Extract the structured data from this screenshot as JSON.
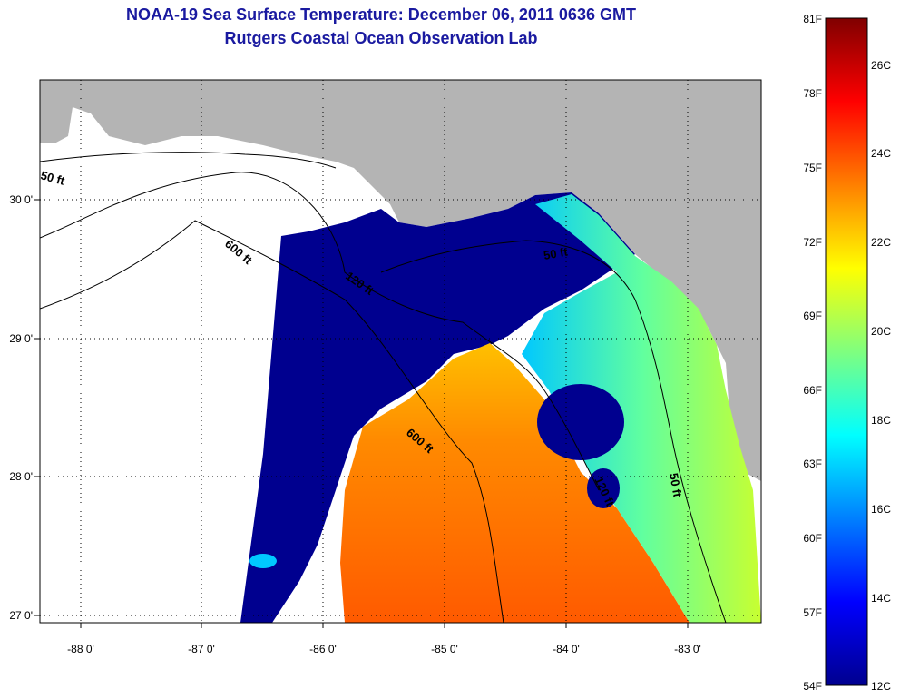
{
  "header": {
    "title": "NOAA-19 Sea Surface Temperature:  December 06, 2011 0636 GMT",
    "subtitle": "Rutgers Coastal Ocean Observation Lab"
  },
  "map": {
    "lon_ticks": [
      "-88 0'",
      "-87 0'",
      "-86 0'",
      "-85 0'",
      "-84 0'",
      "-83 0'"
    ],
    "lat_ticks": [
      "30 0'",
      "29 0'",
      "28 0'",
      "27 0'"
    ],
    "contours": [
      "50 ft",
      "600 ft",
      "120 ft",
      "50 ft",
      "600 ft",
      "120 ft",
      "50 ft"
    ],
    "colors": {
      "land": "#b4b4b4",
      "cold": "#00008f",
      "no_data": "#ffffff"
    }
  },
  "colorbar": {
    "fahrenheit": [
      "81F",
      "78F",
      "75F",
      "72F",
      "69F",
      "66F",
      "63F",
      "60F",
      "57F",
      "54F"
    ],
    "celsius": [
      "26C",
      "24C",
      "22C",
      "20C",
      "18C",
      "16C",
      "14C",
      "12C"
    ]
  }
}
